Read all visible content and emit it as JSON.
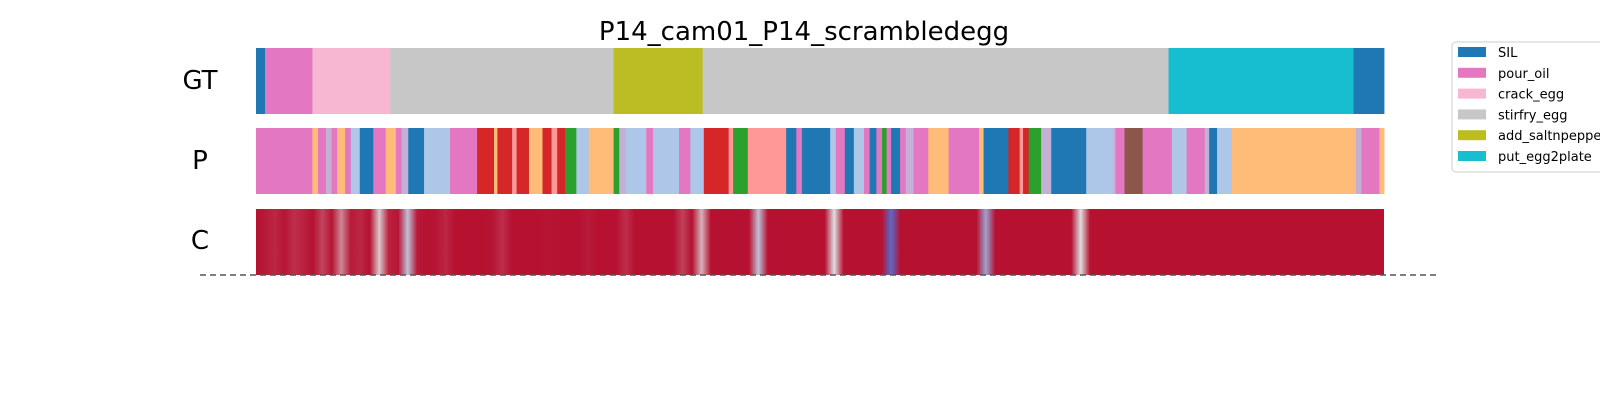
{
  "chart_data": {
    "type": "segmentation_timeline",
    "title": "P14_cam01_P14_scrambledegg",
    "x_range": [
      0,
      1000
    ],
    "rows": [
      {
        "label": "GT",
        "kind": "segments",
        "segments": [
          {
            "start": 0,
            "end": 8,
            "class": "SIL"
          },
          {
            "start": 8,
            "end": 50,
            "class": "pour_oil"
          },
          {
            "start": 50,
            "end": 119,
            "class": "crack_egg"
          },
          {
            "start": 119,
            "end": 317,
            "class": "stirfry_egg"
          },
          {
            "start": 317,
            "end": 396,
            "class": "add_saltnpepper"
          },
          {
            "start": 396,
            "end": 809,
            "class": "stirfry_egg"
          },
          {
            "start": 809,
            "end": 973,
            "class": "put_egg2plate"
          },
          {
            "start": 973,
            "end": 1000,
            "class": "SIL"
          }
        ]
      },
      {
        "label": "P",
        "kind": "segments",
        "segments": [
          {
            "start": 0,
            "end": 50,
            "class": "pour_oil"
          },
          {
            "start": 50,
            "end": 55,
            "class": "c_peach"
          },
          {
            "start": 55,
            "end": 62,
            "class": "pour_oil"
          },
          {
            "start": 62,
            "end": 67,
            "class": "c_lavender"
          },
          {
            "start": 67,
            "end": 72,
            "class": "pour_oil"
          },
          {
            "start": 72,
            "end": 79,
            "class": "c_peach"
          },
          {
            "start": 79,
            "end": 84,
            "class": "pour_oil"
          },
          {
            "start": 84,
            "end": 92,
            "class": "c_ltblue"
          },
          {
            "start": 92,
            "end": 104,
            "class": "SIL"
          },
          {
            "start": 104,
            "end": 115,
            "class": "pour_oil"
          },
          {
            "start": 115,
            "end": 124,
            "class": "c_peach"
          },
          {
            "start": 124,
            "end": 129,
            "class": "pour_oil"
          },
          {
            "start": 129,
            "end": 135,
            "class": "c_lavender"
          },
          {
            "start": 135,
            "end": 149,
            "class": "SIL"
          },
          {
            "start": 149,
            "end": 172,
            "class": "c_ltblue"
          },
          {
            "start": 172,
            "end": 196,
            "class": "pour_oil"
          },
          {
            "start": 196,
            "end": 211,
            "class": "c_red"
          },
          {
            "start": 211,
            "end": 214,
            "class": "c_peach"
          },
          {
            "start": 214,
            "end": 227,
            "class": "c_red"
          },
          {
            "start": 227,
            "end": 231,
            "class": "c_salmon"
          },
          {
            "start": 231,
            "end": 242,
            "class": "c_red"
          },
          {
            "start": 242,
            "end": 254,
            "class": "c_peach"
          },
          {
            "start": 254,
            "end": 262,
            "class": "c_red"
          },
          {
            "start": 262,
            "end": 267,
            "class": "c_salmon"
          },
          {
            "start": 267,
            "end": 274,
            "class": "c_red"
          },
          {
            "start": 274,
            "end": 284,
            "class": "c_green"
          },
          {
            "start": 284,
            "end": 295,
            "class": "c_ltblue"
          },
          {
            "start": 295,
            "end": 317,
            "class": "c_peach"
          },
          {
            "start": 317,
            "end": 322,
            "class": "c_green"
          },
          {
            "start": 322,
            "end": 328,
            "class": "c_lavender"
          },
          {
            "start": 328,
            "end": 346,
            "class": "c_ltblue"
          },
          {
            "start": 346,
            "end": 352,
            "class": "pour_oil"
          },
          {
            "start": 352,
            "end": 375,
            "class": "c_ltblue"
          },
          {
            "start": 375,
            "end": 385,
            "class": "pour_oil"
          },
          {
            "start": 385,
            "end": 397,
            "class": "c_ltblue"
          },
          {
            "start": 397,
            "end": 419,
            "class": "c_red"
          },
          {
            "start": 419,
            "end": 423,
            "class": "c_salmon"
          },
          {
            "start": 423,
            "end": 436,
            "class": "c_green"
          },
          {
            "start": 436,
            "end": 441,
            "class": "c_salmon"
          },
          {
            "start": 441,
            "end": 470,
            "class": "c_salmon"
          },
          {
            "start": 470,
            "end": 479,
            "class": "SIL"
          },
          {
            "start": 479,
            "end": 484,
            "class": "pour_oil"
          },
          {
            "start": 484,
            "end": 509,
            "class": "SIL"
          },
          {
            "start": 509,
            "end": 514,
            "class": "c_ltblue"
          },
          {
            "start": 514,
            "end": 522,
            "class": "pour_oil"
          },
          {
            "start": 522,
            "end": 530,
            "class": "SIL"
          },
          {
            "start": 530,
            "end": 539,
            "class": "c_ltblue"
          },
          {
            "start": 539,
            "end": 544,
            "class": "pour_oil"
          },
          {
            "start": 544,
            "end": 550,
            "class": "SIL"
          },
          {
            "start": 550,
            "end": 555,
            "class": "pour_oil"
          },
          {
            "start": 555,
            "end": 559,
            "class": "c_green"
          },
          {
            "start": 559,
            "end": 563,
            "class": "pour_oil"
          },
          {
            "start": 563,
            "end": 571,
            "class": "SIL"
          },
          {
            "start": 571,
            "end": 576,
            "class": "pour_oil"
          },
          {
            "start": 576,
            "end": 583,
            "class": "c_lavender"
          },
          {
            "start": 583,
            "end": 596,
            "class": "pour_oil"
          },
          {
            "start": 596,
            "end": 614,
            "class": "c_peach"
          },
          {
            "start": 614,
            "end": 641,
            "class": "pour_oil"
          },
          {
            "start": 641,
            "end": 645,
            "class": "c_peach"
          },
          {
            "start": 645,
            "end": 667,
            "class": "SIL"
          },
          {
            "start": 667,
            "end": 677,
            "class": "c_red"
          },
          {
            "start": 677,
            "end": 680,
            "class": "c_salmon"
          },
          {
            "start": 680,
            "end": 685,
            "class": "c_red"
          },
          {
            "start": 685,
            "end": 696,
            "class": "c_green"
          },
          {
            "start": 696,
            "end": 705,
            "class": "c_lavender"
          },
          {
            "start": 705,
            "end": 736,
            "class": "SIL"
          },
          {
            "start": 736,
            "end": 760,
            "class": "c_ltblue"
          },
          {
            "start": 760,
            "end": 762,
            "class": "c_lavender"
          },
          {
            "start": 762,
            "end": 770,
            "class": "pour_oil"
          },
          {
            "start": 770,
            "end": 786,
            "class": "c_brown"
          },
          {
            "start": 786,
            "end": 812,
            "class": "pour_oil"
          },
          {
            "start": 812,
            "end": 825,
            "class": "c_ltblue"
          },
          {
            "start": 825,
            "end": 841,
            "class": "pour_oil"
          },
          {
            "start": 841,
            "end": 845,
            "class": "c_lavender"
          },
          {
            "start": 845,
            "end": 852,
            "class": "SIL"
          },
          {
            "start": 852,
            "end": 865,
            "class": "c_ltblue"
          },
          {
            "start": 865,
            "end": 975,
            "class": "c_peach"
          },
          {
            "start": 975,
            "end": 980,
            "class": "c_lavender"
          },
          {
            "start": 980,
            "end": 996,
            "class": "pour_oil"
          },
          {
            "start": 996,
            "end": 1000,
            "class": "c_peach"
          }
        ]
      },
      {
        "label": "C",
        "kind": "confidence",
        "confidence": [
          0.97,
          0.95,
          0.92,
          0.96,
          0.9,
          0.93,
          0.97,
          0.85,
          0.96,
          0.7,
          0.95,
          0.92,
          0.97,
          0.55,
          0.93,
          0.96,
          0.4,
          0.95,
          0.97,
          0.96,
          0.92,
          0.97,
          0.97,
          0.97,
          0.97,
          0.96,
          0.9,
          0.97,
          0.97,
          0.97,
          0.97,
          0.96,
          0.97,
          0.97,
          0.97,
          0.95,
          0.97,
          0.97,
          0.97,
          0.9,
          0.97,
          0.97,
          0.97,
          0.97,
          0.97,
          0.86,
          0.97,
          0.6,
          0.97,
          0.97,
          0.97,
          0.97,
          0.97,
          0.4,
          0.97,
          0.97,
          0.97,
          0.97,
          0.97,
          0.97,
          0.97,
          0.5,
          0.97,
          0.97,
          0.97,
          0.97,
          0.97,
          0.1,
          0.97,
          0.97,
          0.97,
          0.97,
          0.97,
          0.97,
          0.97,
          0.97,
          0.97,
          0.3,
          0.97,
          0.97,
          0.97,
          0.97,
          0.97,
          0.97,
          0.97,
          0.97,
          0.97,
          0.5,
          0.97,
          0.97,
          0.97,
          0.97,
          0.97,
          0.97,
          0.97,
          0.97,
          0.97,
          0.97,
          0.97,
          0.97,
          0.97,
          0.97,
          0.97,
          0.97,
          0.97,
          0.97,
          0.97,
          0.97,
          0.97,
          0.97,
          0.97,
          0.97,
          0.97,
          0.97,
          0.97,
          0.97,
          0.97,
          0.97,
          0.97,
          0.97
        ]
      }
    ],
    "legend": [
      {
        "label": "SIL",
        "color": "#1f77b4"
      },
      {
        "label": "pour_oil",
        "color": "#e377c2"
      },
      {
        "label": "crack_egg",
        "color": "#f7b6d2"
      },
      {
        "label": "stirfry_egg",
        "color": "#c7c7c7"
      },
      {
        "label": "add_saltnpepper",
        "color": "#bcbd22"
      },
      {
        "label": "put_egg2plate",
        "color": "#17becf"
      }
    ],
    "class_colors": {
      "SIL": "#1f77b4",
      "pour_oil": "#e377c2",
      "crack_egg": "#f7b6d2",
      "stirfry_egg": "#c7c7c7",
      "add_saltnpepper": "#bcbd22",
      "put_egg2plate": "#17becf",
      "c_peach": "#ffbb78",
      "c_ltblue": "#aec7e8",
      "c_lavender": "#c5b0d5",
      "c_red": "#d62728",
      "c_salmon": "#ff9896",
      "c_green": "#2ca02c",
      "c_brown": "#8c564b"
    }
  }
}
